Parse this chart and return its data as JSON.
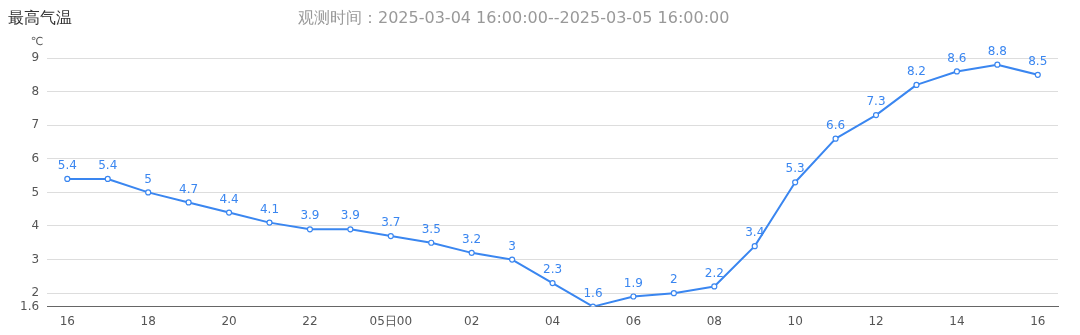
{
  "chart_data": {
    "type": "line",
    "title": "最高气温",
    "subtitle": "观测时间：2025-03-04 16:00:00--2025-03-05 16:00:00",
    "ylabel": "℃",
    "categories": [
      "16",
      null,
      "18",
      null,
      "20",
      null,
      "22",
      null,
      "05日00",
      null,
      "02",
      null,
      "04",
      null,
      "06",
      null,
      "08",
      null,
      "10",
      null,
      "12",
      null,
      "14",
      null,
      "16"
    ],
    "series": [
      {
        "color": "#3a86f0",
        "values": [
          5.4,
          5.4,
          5,
          4.7,
          4.4,
          4.1,
          3.9,
          3.9,
          3.7,
          3.5,
          3.2,
          3,
          2.3,
          1.6,
          1.9,
          2,
          2.2,
          3.4,
          5.3,
          6.6,
          7.3,
          8.2,
          8.6,
          8.8,
          8.5
        ]
      }
    ],
    "ylim": [
      1.6,
      9
    ],
    "yticks": [
      1.6,
      2,
      3,
      4,
      5,
      6,
      7,
      8,
      9
    ],
    "grid": "y",
    "marker": "circle",
    "line_style": "solid",
    "data_labels": true,
    "legend": false
  }
}
